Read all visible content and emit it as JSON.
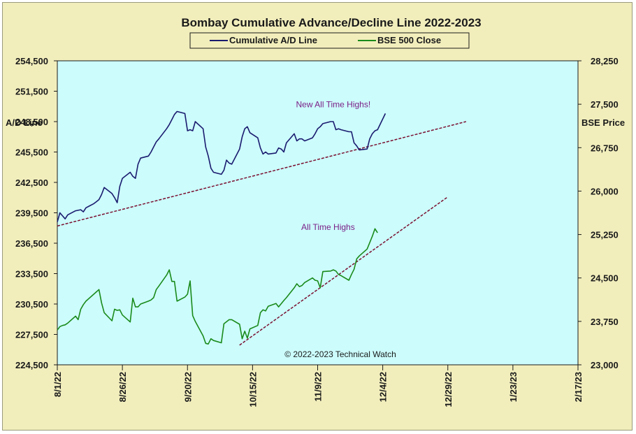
{
  "chart_data": {
    "type": "line",
    "title": "Bombay Cumulative Advance/Decline Line 2022-2023",
    "y_left_label": "A/D Line",
    "y_right_label": "BSE Price",
    "ylim_left": [
      224500,
      254500
    ],
    "ylim_right": [
      23000,
      28250
    ],
    "y_left_ticks": [
      "224,500",
      "227,500",
      "230,500",
      "233,500",
      "236,500",
      "239,500",
      "242,500",
      "245,500",
      "248,500",
      "251,500",
      "254,500"
    ],
    "y_right_ticks": [
      "23,000",
      "23,750",
      "24,500",
      "25,250",
      "26,000",
      "26,750",
      "27,500",
      "28,250"
    ],
    "x_tick_labels": [
      "8/1/22",
      "8/26/22",
      "9/20/22",
      "10/15/22",
      "11/9/22",
      "12/4/22",
      "12/29/22",
      "1/23/23",
      "2/17/23"
    ],
    "x_range": [
      "2022-08-01",
      "2023-02-17"
    ],
    "grid": false,
    "legend_position": "top-center",
    "colors": {
      "ad_line": "#1a1a6e",
      "bse": "#1a8a1a",
      "trend": "#7a1030",
      "plot_bg": "#ccfcfc",
      "frame_bg": "#f2eebc"
    },
    "series": [
      {
        "name": "Cumulative A/D Line",
        "axis": "left",
        "points": [
          [
            "2022-08-01",
            238600
          ],
          [
            "2022-08-02",
            239500
          ],
          [
            "2022-08-03",
            239200
          ],
          [
            "2022-08-04",
            238900
          ],
          [
            "2022-08-05",
            239300
          ],
          [
            "2022-08-08",
            239700
          ],
          [
            "2022-08-10",
            239800
          ],
          [
            "2022-08-11",
            239600
          ],
          [
            "2022-08-12",
            240000
          ],
          [
            "2022-08-15",
            240400
          ],
          [
            "2022-08-16",
            240600
          ],
          [
            "2022-08-17",
            240800
          ],
          [
            "2022-08-18",
            241300
          ],
          [
            "2022-08-19",
            242000
          ],
          [
            "2022-08-22",
            241400
          ],
          [
            "2022-08-23",
            241000
          ],
          [
            "2022-08-24",
            240500
          ],
          [
            "2022-08-25",
            242100
          ],
          [
            "2022-08-26",
            242900
          ],
          [
            "2022-08-29",
            243500
          ],
          [
            "2022-08-30",
            243100
          ],
          [
            "2022-08-31",
            242900
          ],
          [
            "2022-09-01",
            244300
          ],
          [
            "2022-09-02",
            244900
          ],
          [
            "2022-09-05",
            245100
          ],
          [
            "2022-09-06",
            245500
          ],
          [
            "2022-09-07",
            246000
          ],
          [
            "2022-09-08",
            246500
          ],
          [
            "2022-09-09",
            246800
          ],
          [
            "2022-09-12",
            247800
          ],
          [
            "2022-09-13",
            248200
          ],
          [
            "2022-09-14",
            248700
          ],
          [
            "2022-09-15",
            249200
          ],
          [
            "2022-09-16",
            249500
          ],
          [
            "2022-09-19",
            249300
          ],
          [
            "2022-09-20",
            247600
          ],
          [
            "2022-09-21",
            247700
          ],
          [
            "2022-09-22",
            247600
          ],
          [
            "2022-09-23",
            248500
          ],
          [
            "2022-09-26",
            247800
          ],
          [
            "2022-09-27",
            246000
          ],
          [
            "2022-09-28",
            245100
          ],
          [
            "2022-09-29",
            243900
          ],
          [
            "2022-09-30",
            243500
          ],
          [
            "2022-10-03",
            243300
          ],
          [
            "2022-10-04",
            243700
          ],
          [
            "2022-10-05",
            244700
          ],
          [
            "2022-10-06",
            244400
          ],
          [
            "2022-10-07",
            244300
          ],
          [
            "2022-10-10",
            245800
          ],
          [
            "2022-10-11",
            247000
          ],
          [
            "2022-10-12",
            247800
          ],
          [
            "2022-10-13",
            248000
          ],
          [
            "2022-10-14",
            247400
          ],
          [
            "2022-10-17",
            246900
          ],
          [
            "2022-10-18",
            245900
          ],
          [
            "2022-10-19",
            245300
          ],
          [
            "2022-10-20",
            245500
          ],
          [
            "2022-10-21",
            245300
          ],
          [
            "2022-10-24",
            245400
          ],
          [
            "2022-10-25",
            245900
          ],
          [
            "2022-10-26",
            245800
          ],
          [
            "2022-10-27",
            245500
          ],
          [
            "2022-10-28",
            246400
          ],
          [
            "2022-10-31",
            247300
          ],
          [
            "2022-11-01",
            246600
          ],
          [
            "2022-11-02",
            246800
          ],
          [
            "2022-11-03",
            246800
          ],
          [
            "2022-11-04",
            246600
          ],
          [
            "2022-11-07",
            246900
          ],
          [
            "2022-11-08",
            247300
          ],
          [
            "2022-11-09",
            247800
          ],
          [
            "2022-11-10",
            248000
          ],
          [
            "2022-11-11",
            248300
          ],
          [
            "2022-11-14",
            248500
          ],
          [
            "2022-11-15",
            248500
          ],
          [
            "2022-11-16",
            247700
          ],
          [
            "2022-11-17",
            247800
          ],
          [
            "2022-11-18",
            247700
          ],
          [
            "2022-11-21",
            247500
          ],
          [
            "2022-11-22",
            247500
          ],
          [
            "2022-11-23",
            246400
          ],
          [
            "2022-11-24",
            246100
          ],
          [
            "2022-11-25",
            245700
          ],
          [
            "2022-11-28",
            245800
          ],
          [
            "2022-11-29",
            246800
          ],
          [
            "2022-11-30",
            247300
          ],
          [
            "2022-12-01",
            247600
          ],
          [
            "2022-12-02",
            247700
          ],
          [
            "2022-12-05",
            249300
          ]
        ]
      },
      {
        "name": "BSE 500 Close",
        "axis": "right",
        "points": [
          [
            "2022-08-01",
            23600
          ],
          [
            "2022-08-02",
            23660
          ],
          [
            "2022-08-03",
            23680
          ],
          [
            "2022-08-04",
            23690
          ],
          [
            "2022-08-05",
            23720
          ],
          [
            "2022-08-08",
            23840
          ],
          [
            "2022-08-09",
            23780
          ],
          [
            "2022-08-10",
            23960
          ],
          [
            "2022-08-11",
            24040
          ],
          [
            "2022-08-12",
            24100
          ],
          [
            "2022-08-16",
            24260
          ],
          [
            "2022-08-17",
            24300
          ],
          [
            "2022-08-18",
            24070
          ],
          [
            "2022-08-19",
            23900
          ],
          [
            "2022-08-22",
            23760
          ],
          [
            "2022-08-23",
            23960
          ],
          [
            "2022-08-24",
            23940
          ],
          [
            "2022-08-25",
            23950
          ],
          [
            "2022-08-26",
            23860
          ],
          [
            "2022-08-29",
            23740
          ],
          [
            "2022-08-30",
            24150
          ],
          [
            "2022-08-31",
            24000
          ],
          [
            "2022-09-01",
            24000
          ],
          [
            "2022-09-02",
            24050
          ],
          [
            "2022-09-05",
            24100
          ],
          [
            "2022-09-06",
            24120
          ],
          [
            "2022-09-07",
            24160
          ],
          [
            "2022-09-08",
            24300
          ],
          [
            "2022-09-09",
            24360
          ],
          [
            "2022-09-12",
            24550
          ],
          [
            "2022-09-13",
            24640
          ],
          [
            "2022-09-14",
            24440
          ],
          [
            "2022-09-15",
            24440
          ],
          [
            "2022-09-16",
            24100
          ],
          [
            "2022-09-19",
            24170
          ],
          [
            "2022-09-20",
            24220
          ],
          [
            "2022-09-21",
            24450
          ],
          [
            "2022-09-22",
            23850
          ],
          [
            "2022-09-23",
            23750
          ],
          [
            "2022-09-26",
            23500
          ],
          [
            "2022-09-27",
            23370
          ],
          [
            "2022-09-28",
            23360
          ],
          [
            "2022-09-29",
            23450
          ],
          [
            "2022-09-30",
            23420
          ],
          [
            "2022-10-03",
            23380
          ],
          [
            "2022-10-04",
            23710
          ],
          [
            "2022-10-06",
            23780
          ],
          [
            "2022-10-07",
            23780
          ],
          [
            "2022-10-10",
            23700
          ],
          [
            "2022-10-11",
            23450
          ],
          [
            "2022-10-12",
            23580
          ],
          [
            "2022-10-13",
            23460
          ],
          [
            "2022-10-14",
            23620
          ],
          [
            "2022-10-17",
            23680
          ],
          [
            "2022-10-18",
            23900
          ],
          [
            "2022-10-19",
            23950
          ],
          [
            "2022-10-20",
            23930
          ],
          [
            "2022-10-21",
            24010
          ],
          [
            "2022-10-24",
            24060
          ],
          [
            "2022-10-25",
            24000
          ],
          [
            "2022-10-27",
            24110
          ],
          [
            "2022-10-28",
            24160
          ],
          [
            "2022-10-31",
            24330
          ],
          [
            "2022-11-01",
            24400
          ],
          [
            "2022-11-02",
            24350
          ],
          [
            "2022-11-03",
            24370
          ],
          [
            "2022-11-04",
            24420
          ],
          [
            "2022-11-07",
            24500
          ],
          [
            "2022-11-08",
            24460
          ],
          [
            "2022-11-09",
            24450
          ],
          [
            "2022-11-10",
            24330
          ],
          [
            "2022-11-11",
            24610
          ],
          [
            "2022-11-14",
            24620
          ],
          [
            "2022-11-15",
            24640
          ],
          [
            "2022-11-16",
            24620
          ],
          [
            "2022-11-17",
            24560
          ],
          [
            "2022-11-18",
            24540
          ],
          [
            "2022-11-21",
            24460
          ],
          [
            "2022-11-22",
            24560
          ],
          [
            "2022-11-23",
            24650
          ],
          [
            "2022-11-24",
            24830
          ],
          [
            "2022-11-25",
            24880
          ],
          [
            "2022-11-28",
            25000
          ],
          [
            "2022-11-29",
            25110
          ],
          [
            "2022-11-30",
            25220
          ],
          [
            "2022-12-01",
            25350
          ],
          [
            "2022-12-02",
            25280
          ]
        ]
      }
    ],
    "trendlines": [
      {
        "axis": "left",
        "style": "dashed",
        "from": [
          "2022-08-01",
          238200
        ],
        "to": [
          "2023-01-05",
          248500
        ]
      },
      {
        "axis": "right",
        "style": "dashed",
        "from": [
          "2022-10-10",
          23340
        ],
        "to": [
          "2022-12-29",
          25900
        ]
      }
    ],
    "annotations": [
      {
        "text": "New All Time Highs!",
        "axis": "left",
        "at": [
          "2022-11-15",
          249900
        ]
      },
      {
        "text": "All Time Highs",
        "axis": "right",
        "at": [
          "2022-11-13",
          25330
        ]
      }
    ],
    "footnote": "© 2022-2023  Technical  Watch"
  }
}
